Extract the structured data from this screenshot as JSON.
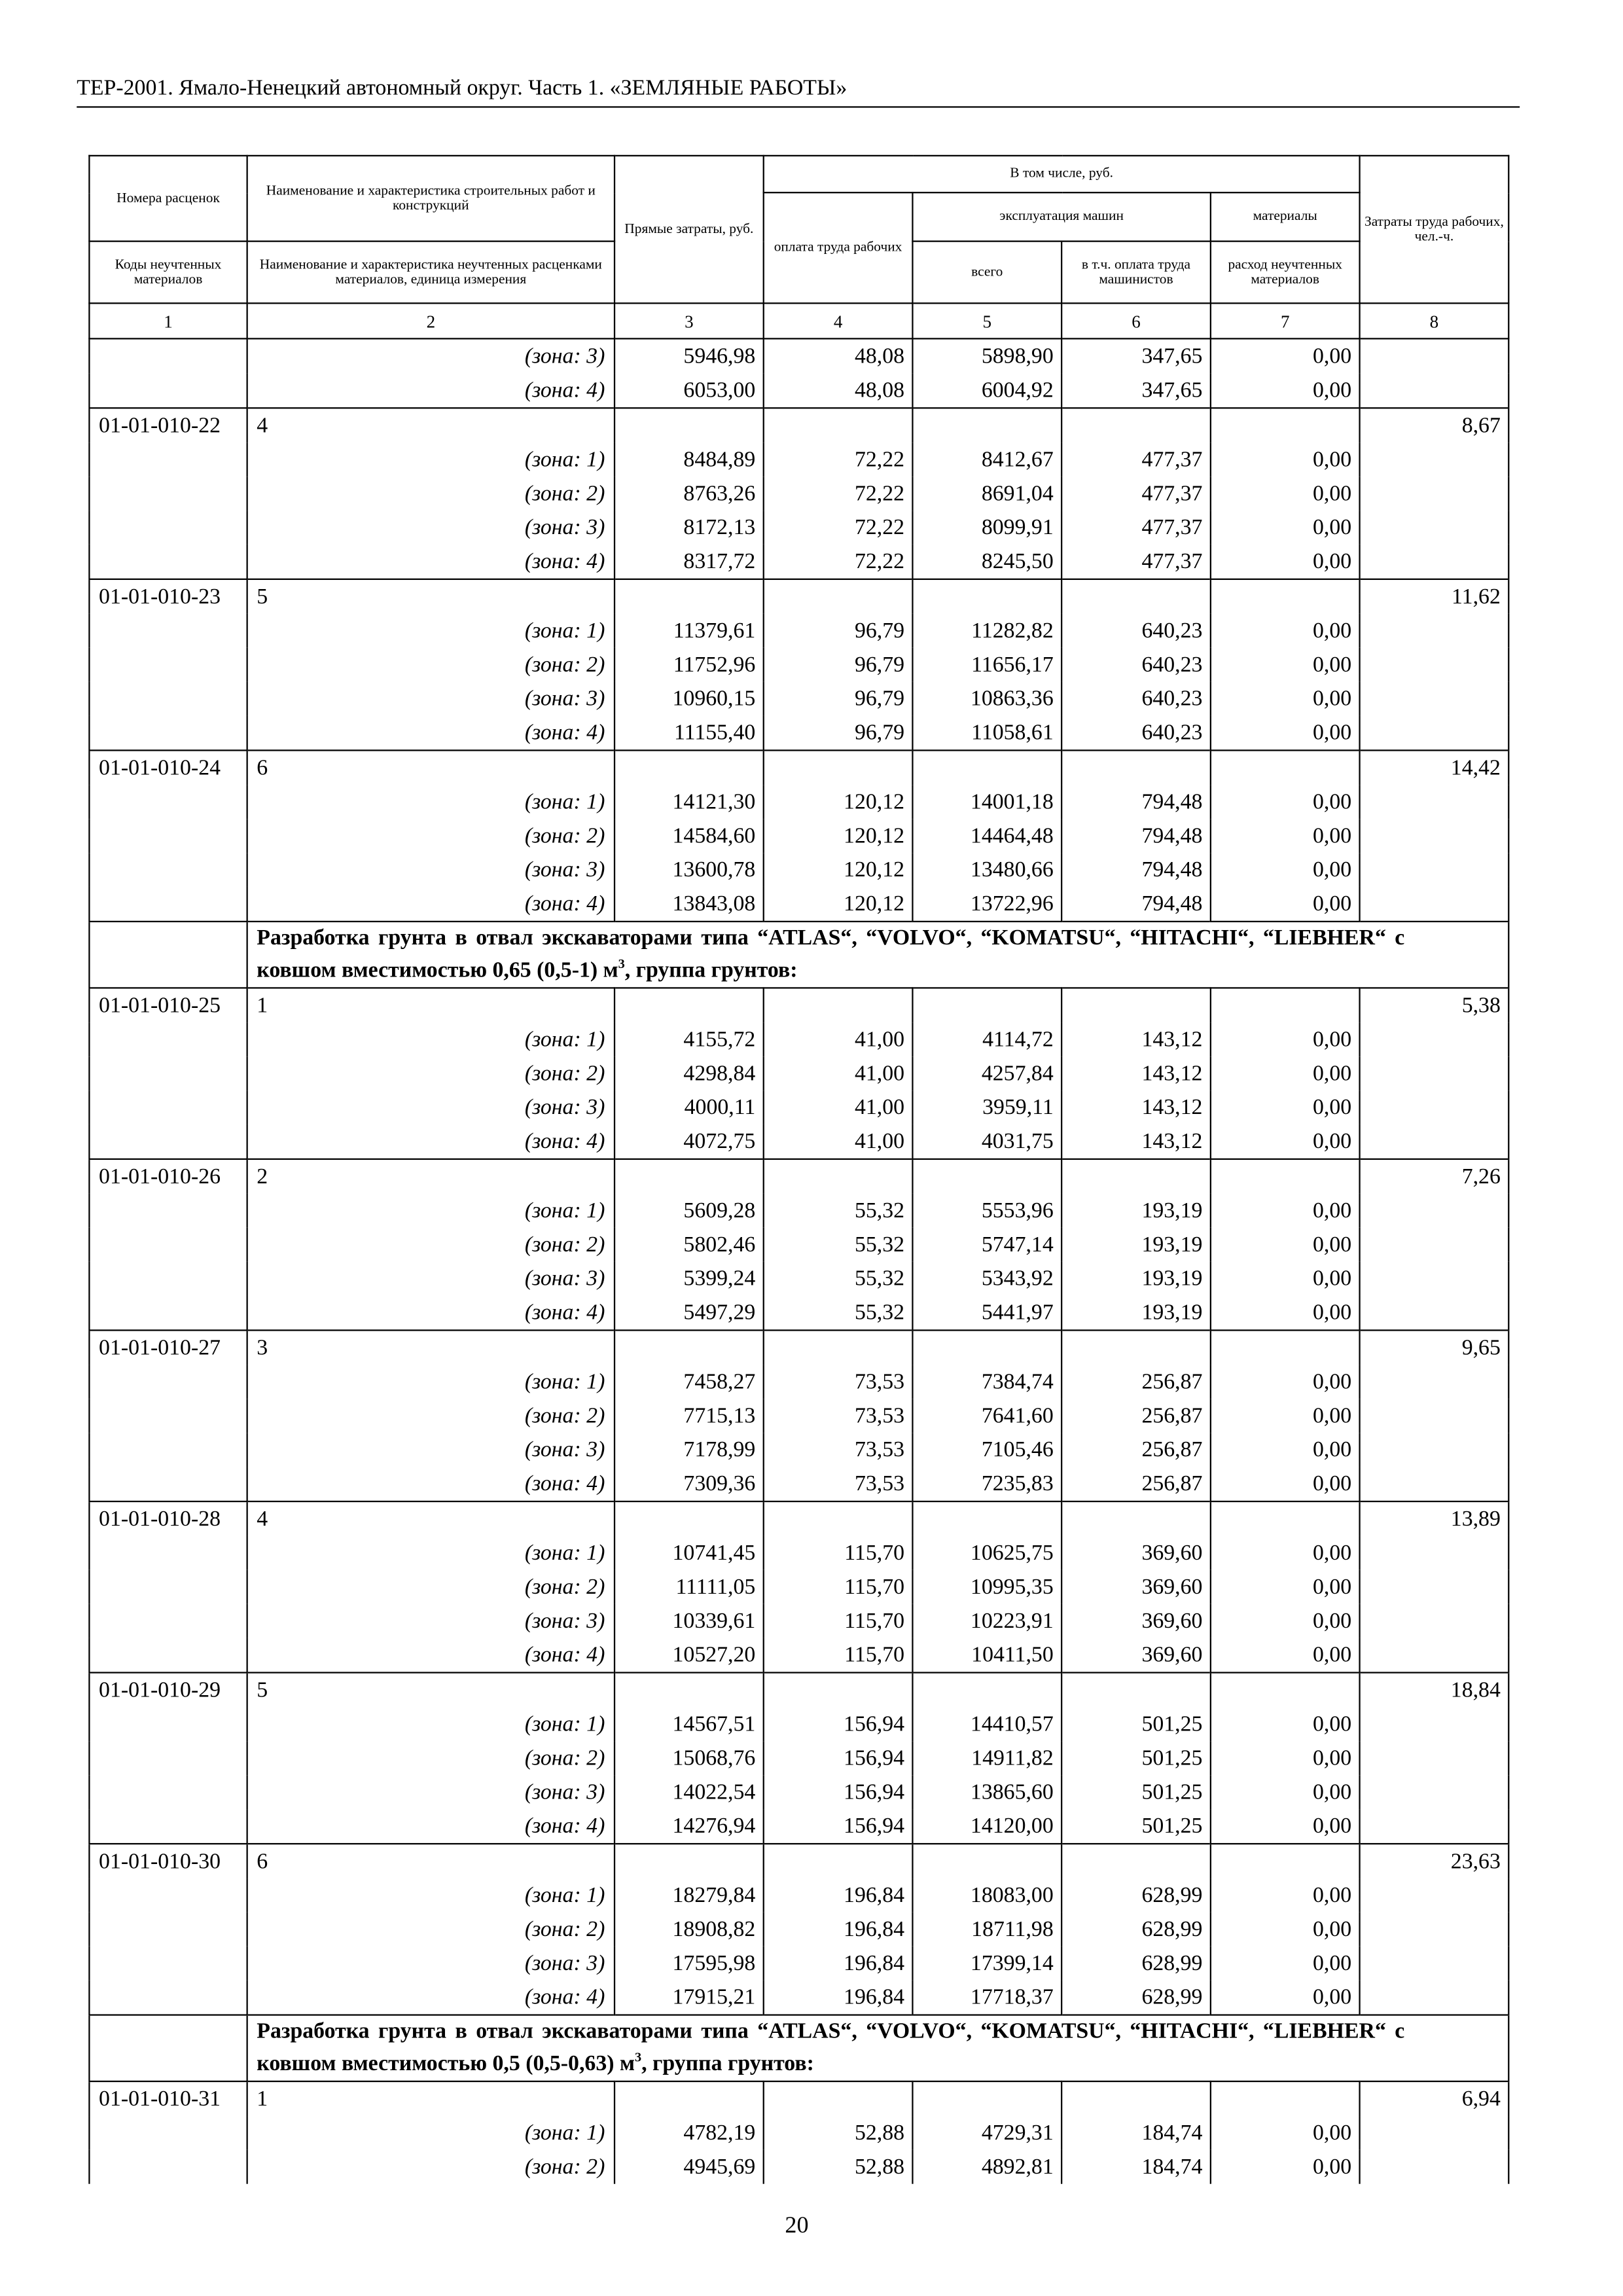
{
  "header": {
    "title": "ТЕР-2001. Ямало-Ненецкий автономный округ. Часть 1. «ЗЕМЛЯНЫЕ РАБОТЫ»"
  },
  "table_header": {
    "col1_top": "Номера расценок",
    "col1_bottom": "Коды неучтенных материалов",
    "col2_top": "Наименование и характеристика строительных работ и конструкций",
    "col2_bottom": "Наименование и характеристика неучтенных расценками материалов, единица измерения",
    "col3": "Прямые затраты, руб.",
    "group": "В том числе, руб.",
    "machines": "эксплуатация машин",
    "materials": "материалы",
    "col4": "оплата труда рабочих",
    "col5": "всего",
    "col6": "в т.ч. оплата труда машинистов",
    "col7": "расход неучтенных материалов",
    "col8": "Затраты труда рабочих, чел.-ч.",
    "numbers": [
      "1",
      "2",
      "3",
      "4",
      "5",
      "6",
      "7",
      "8"
    ]
  },
  "body": [
    {
      "zones": [
        [
          "(зона: 3)",
          "5946,98",
          "48,08",
          "5898,90",
          "347,65",
          "0,00"
        ],
        [
          "(зона: 4)",
          "6053,00",
          "48,08",
          "6004,92",
          "347,65",
          "0,00"
        ]
      ]
    },
    {
      "code": "01-01-010-22",
      "name": "4",
      "labor": "8,67",
      "zones": [
        [
          "(зона: 1)",
          "8484,89",
          "72,22",
          "8412,67",
          "477,37",
          "0,00"
        ],
        [
          "(зона: 2)",
          "8763,26",
          "72,22",
          "8691,04",
          "477,37",
          "0,00"
        ],
        [
          "(зона: 3)",
          "8172,13",
          "72,22",
          "8099,91",
          "477,37",
          "0,00"
        ],
        [
          "(зона: 4)",
          "8317,72",
          "72,22",
          "8245,50",
          "477,37",
          "0,00"
        ]
      ]
    },
    {
      "code": "01-01-010-23",
      "name": "5",
      "labor": "11,62",
      "zones": [
        [
          "(зона: 1)",
          "11379,61",
          "96,79",
          "11282,82",
          "640,23",
          "0,00"
        ],
        [
          "(зона: 2)",
          "11752,96",
          "96,79",
          "11656,17",
          "640,23",
          "0,00"
        ],
        [
          "(зона: 3)",
          "10960,15",
          "96,79",
          "10863,36",
          "640,23",
          "0,00"
        ],
        [
          "(зона: 4)",
          "11155,40",
          "96,79",
          "11058,61",
          "640,23",
          "0,00"
        ]
      ]
    },
    {
      "code": "01-01-010-24",
      "name": "6",
      "labor": "14,42",
      "zones": [
        [
          "(зона: 1)",
          "14121,30",
          "120,12",
          "14001,18",
          "794,48",
          "0,00"
        ],
        [
          "(зона: 2)",
          "14584,60",
          "120,12",
          "14464,48",
          "794,48",
          "0,00"
        ],
        [
          "(зона: 3)",
          "13600,78",
          "120,12",
          "13480,66",
          "794,48",
          "0,00"
        ],
        [
          "(зона: 4)",
          "13843,08",
          "120,12",
          "13722,96",
          "794,48",
          "0,00"
        ]
      ]
    },
    {
      "section": {
        "text": "Разработка грунта в отвал экскаваторами типа “ATLAS“, “VOLVO“, “KOMATSU“, “HITACHI“, “LIEBHER“ с ковшом вместимостью 0,65 (0,5-1) м",
        "sup": "3",
        "text_after": ", группа грунтов:"
      }
    },
    {
      "code": "01-01-010-25",
      "name": "1",
      "labor": "5,38",
      "zones": [
        [
          "(зона: 1)",
          "4155,72",
          "41,00",
          "4114,72",
          "143,12",
          "0,00"
        ],
        [
          "(зона: 2)",
          "4298,84",
          "41,00",
          "4257,84",
          "143,12",
          "0,00"
        ],
        [
          "(зона: 3)",
          "4000,11",
          "41,00",
          "3959,11",
          "143,12",
          "0,00"
        ],
        [
          "(зона: 4)",
          "4072,75",
          "41,00",
          "4031,75",
          "143,12",
          "0,00"
        ]
      ]
    },
    {
      "code": "01-01-010-26",
      "name": "2",
      "labor": "7,26",
      "zones": [
        [
          "(зона: 1)",
          "5609,28",
          "55,32",
          "5553,96",
          "193,19",
          "0,00"
        ],
        [
          "(зона: 2)",
          "5802,46",
          "55,32",
          "5747,14",
          "193,19",
          "0,00"
        ],
        [
          "(зона: 3)",
          "5399,24",
          "55,32",
          "5343,92",
          "193,19",
          "0,00"
        ],
        [
          "(зона: 4)",
          "5497,29",
          "55,32",
          "5441,97",
          "193,19",
          "0,00"
        ]
      ]
    },
    {
      "code": "01-01-010-27",
      "name": "3",
      "labor": "9,65",
      "zones": [
        [
          "(зона: 1)",
          "7458,27",
          "73,53",
          "7384,74",
          "256,87",
          "0,00"
        ],
        [
          "(зона: 2)",
          "7715,13",
          "73,53",
          "7641,60",
          "256,87",
          "0,00"
        ],
        [
          "(зона: 3)",
          "7178,99",
          "73,53",
          "7105,46",
          "256,87",
          "0,00"
        ],
        [
          "(зона: 4)",
          "7309,36",
          "73,53",
          "7235,83",
          "256,87",
          "0,00"
        ]
      ]
    },
    {
      "code": "01-01-010-28",
      "name": "4",
      "labor": "13,89",
      "zones": [
        [
          "(зона: 1)",
          "10741,45",
          "115,70",
          "10625,75",
          "369,60",
          "0,00"
        ],
        [
          "(зона: 2)",
          "11111,05",
          "115,70",
          "10995,35",
          "369,60",
          "0,00"
        ],
        [
          "(зона: 3)",
          "10339,61",
          "115,70",
          "10223,91",
          "369,60",
          "0,00"
        ],
        [
          "(зона: 4)",
          "10527,20",
          "115,70",
          "10411,50",
          "369,60",
          "0,00"
        ]
      ]
    },
    {
      "code": "01-01-010-29",
      "name": "5",
      "labor": "18,84",
      "zones": [
        [
          "(зона: 1)",
          "14567,51",
          "156,94",
          "14410,57",
          "501,25",
          "0,00"
        ],
        [
          "(зона: 2)",
          "15068,76",
          "156,94",
          "14911,82",
          "501,25",
          "0,00"
        ],
        [
          "(зона: 3)",
          "14022,54",
          "156,94",
          "13865,60",
          "501,25",
          "0,00"
        ],
        [
          "(зона: 4)",
          "14276,94",
          "156,94",
          "14120,00",
          "501,25",
          "0,00"
        ]
      ]
    },
    {
      "code": "01-01-010-30",
      "name": "6",
      "labor": "23,63",
      "zones": [
        [
          "(зона: 1)",
          "18279,84",
          "196,84",
          "18083,00",
          "628,99",
          "0,00"
        ],
        [
          "(зона: 2)",
          "18908,82",
          "196,84",
          "18711,98",
          "628,99",
          "0,00"
        ],
        [
          "(зона: 3)",
          "17595,98",
          "196,84",
          "17399,14",
          "628,99",
          "0,00"
        ],
        [
          "(зона: 4)",
          "17915,21",
          "196,84",
          "17718,37",
          "628,99",
          "0,00"
        ]
      ]
    },
    {
      "section": {
        "text": "Разработка грунта в отвал экскаваторами типа “ATLAS“, “VOLVO“, “KOMATSU“, “HITACHI“, “LIEBHER“ с ковшом вместимостью 0,5 (0,5-0,63) м",
        "sup": "3",
        "text_after": ", группа грунтов:"
      }
    },
    {
      "code": "01-01-010-31",
      "name": "1",
      "labor": "6,94",
      "zones": [
        [
          "(зона: 1)",
          "4782,19",
          "52,88",
          "4729,31",
          "184,74",
          "0,00"
        ],
        [
          "(зона: 2)",
          "4945,69",
          "52,88",
          "4892,81",
          "184,74",
          "0,00"
        ]
      ]
    }
  ],
  "page_number": "20"
}
